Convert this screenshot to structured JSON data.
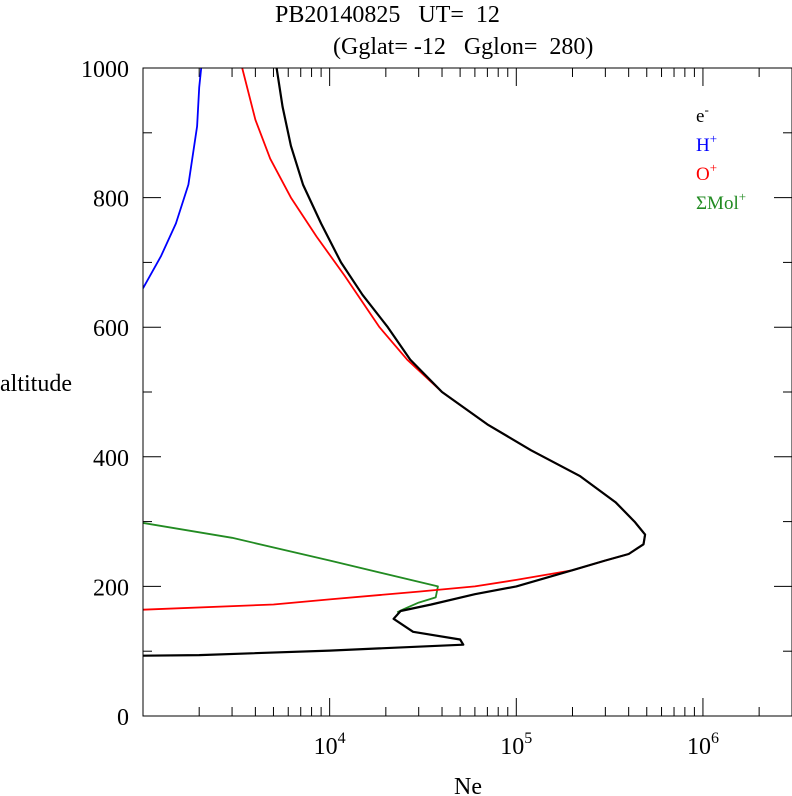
{
  "chart_data": {
    "type": "line",
    "title_line1": "PB20140825   UT=  12",
    "title_line2": "(Gglat= -12   Gglon=  280)",
    "xlabel": "Ne",
    "ylabel": "altitude",
    "x_scale": "log",
    "xlim": [
      1000,
      3000000
    ],
    "ylim": [
      0,
      1000
    ],
    "y_ticks": [
      "0",
      "200",
      "400",
      "600",
      "800",
      "1000"
    ],
    "x_tick_labels": [
      {
        "base": "10",
        "exp": "4",
        "value": 10000
      },
      {
        "base": "10",
        "exp": "5",
        "value": 100000
      },
      {
        "base": "10",
        "exp": "6",
        "value": 1000000
      }
    ],
    "legend_position": "top-right",
    "series": [
      {
        "id": "hplus",
        "legend_base": "H",
        "legend_sup": "+",
        "color": "#0000ff",
        "points": [
          [
            1000,
            660
          ],
          [
            1250,
            710
          ],
          [
            1500,
            760
          ],
          [
            1750,
            820
          ],
          [
            1950,
            910
          ],
          [
            2000,
            970
          ],
          [
            2050,
            1000
          ]
        ]
      },
      {
        "id": "oplus",
        "legend_base": "O",
        "legend_sup": "+",
        "color": "#ff0000",
        "points": [
          [
            1000,
            164
          ],
          [
            5000,
            172
          ],
          [
            10000,
            180
          ],
          [
            30000,
            192
          ],
          [
            60000,
            200
          ],
          [
            100000,
            210
          ],
          [
            200000,
            225
          ],
          [
            300000,
            240
          ],
          [
            400000,
            250
          ],
          [
            480000,
            265
          ],
          [
            490000,
            280
          ],
          [
            430000,
            300
          ],
          [
            340000,
            330
          ],
          [
            220000,
            370
          ],
          [
            120000,
            410
          ],
          [
            70000,
            450
          ],
          [
            40000,
            500
          ],
          [
            26000,
            550
          ],
          [
            18500,
            600
          ],
          [
            12000,
            680
          ],
          [
            8500,
            740
          ],
          [
            6200,
            800
          ],
          [
            4800,
            860
          ],
          [
            4000,
            920
          ],
          [
            3400,
            1000
          ]
        ]
      },
      {
        "id": "molplus",
        "legend_base": "ΣMol",
        "legend_sup": "+",
        "color": "#228b22",
        "points": [
          [
            1000,
            298
          ],
          [
            3000,
            275
          ],
          [
            10000,
            240
          ],
          [
            38000,
            200
          ],
          [
            37000,
            183
          ],
          [
            30000,
            175
          ],
          [
            25000,
            165
          ],
          [
            23000,
            160
          ]
        ]
      },
      {
        "id": "electron",
        "legend_base": "e",
        "legend_sup": "-",
        "color": "#000000",
        "points": [
          [
            1000,
            93
          ],
          [
            2000,
            94
          ],
          [
            10000,
            101
          ],
          [
            52000,
            110
          ],
          [
            50000,
            118
          ],
          [
            28000,
            130
          ],
          [
            22000,
            150
          ],
          [
            24000,
            162
          ],
          [
            35000,
            172
          ],
          [
            60000,
            188
          ],
          [
            100000,
            200
          ],
          [
            200000,
            225
          ],
          [
            300000,
            240
          ],
          [
            400000,
            250
          ],
          [
            480000,
            265
          ],
          [
            490000,
            280
          ],
          [
            430000,
            300
          ],
          [
            340000,
            330
          ],
          [
            220000,
            370
          ],
          [
            120000,
            410
          ],
          [
            70000,
            450
          ],
          [
            40000,
            500
          ],
          [
            27000,
            550
          ],
          [
            20500,
            600
          ],
          [
            15000,
            650
          ],
          [
            11500,
            700
          ],
          [
            9000,
            760
          ],
          [
            7200,
            820
          ],
          [
            6200,
            880
          ],
          [
            5600,
            940
          ],
          [
            5200,
            1000
          ]
        ]
      }
    ]
  }
}
